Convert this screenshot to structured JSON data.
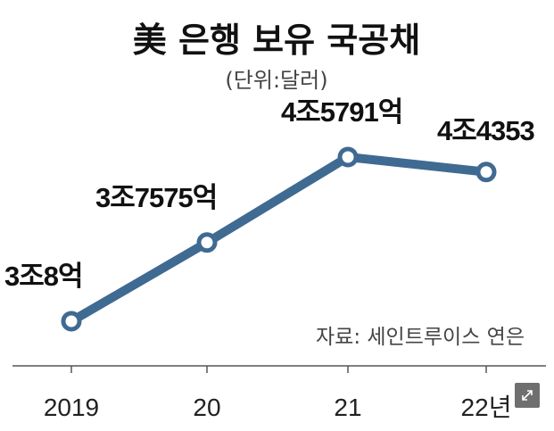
{
  "chart_data": {
    "type": "line",
    "title": "美 은행 보유 국공채",
    "subtitle": "(단위:달러)",
    "categories": [
      "2019",
      "20",
      "21",
      "22년"
    ],
    "series": [
      {
        "values": [
          30008,
          37575,
          45791,
          44353
        ]
      }
    ],
    "data_labels": [
      "3조8억",
      "3조7575억",
      "4조5791억",
      "4조4353"
    ],
    "source": "자료: 세인트루이스 연은",
    "line_color": "#3f6a92",
    "grid": false,
    "ylim": [
      28000,
      49000
    ]
  },
  "ui": {
    "expand_icon": "expand-arrows-icon"
  }
}
